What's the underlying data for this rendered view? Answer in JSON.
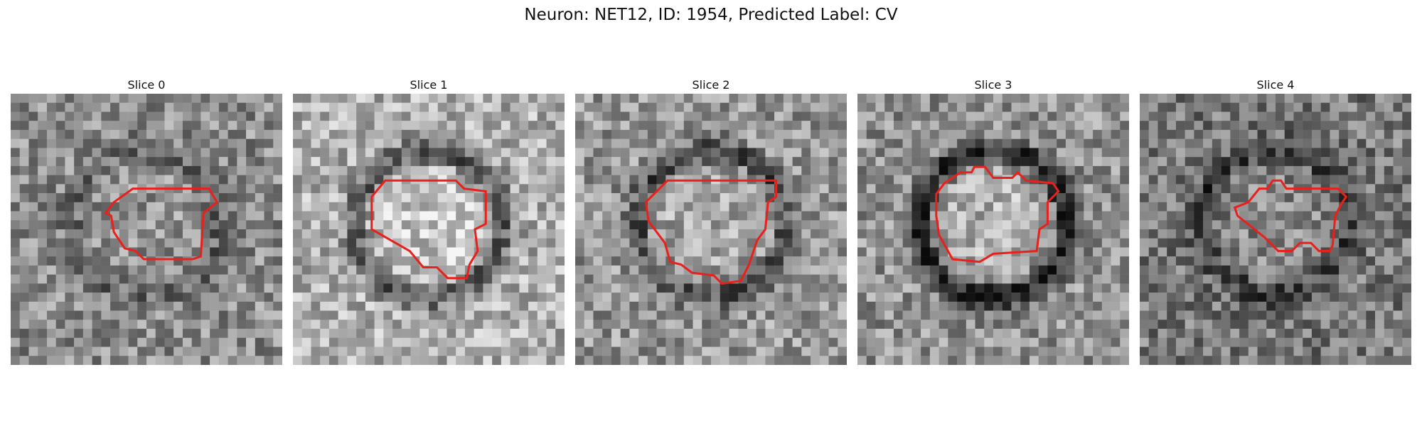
{
  "figure": {
    "title": "Neuron: NET12, ID: 1954, Predicted Label: CV"
  },
  "panels": [
    {
      "title": "Slice 0",
      "seed": 11,
      "base": 140,
      "ring_strength": 35,
      "outline_color": "#e8211c",
      "outline": [
        [
          0.45,
          0.35
        ],
        [
          0.73,
          0.35
        ],
        [
          0.76,
          0.4
        ],
        [
          0.71,
          0.44
        ],
        [
          0.7,
          0.6
        ],
        [
          0.67,
          0.61
        ],
        [
          0.49,
          0.61
        ],
        [
          0.46,
          0.58
        ],
        [
          0.42,
          0.57
        ],
        [
          0.38,
          0.51
        ],
        [
          0.37,
          0.45
        ],
        [
          0.35,
          0.44
        ],
        [
          0.38,
          0.4
        ]
      ]
    },
    {
      "title": "Slice 1",
      "seed": 23,
      "base": 175,
      "ring_strength": 85,
      "outline_color": "#e8211c",
      "outline": [
        [
          0.34,
          0.32
        ],
        [
          0.6,
          0.32
        ],
        [
          0.63,
          0.35
        ],
        [
          0.71,
          0.36
        ],
        [
          0.71,
          0.48
        ],
        [
          0.67,
          0.5
        ],
        [
          0.68,
          0.58
        ],
        [
          0.65,
          0.63
        ],
        [
          0.64,
          0.68
        ],
        [
          0.57,
          0.68
        ],
        [
          0.53,
          0.64
        ],
        [
          0.48,
          0.64
        ],
        [
          0.43,
          0.58
        ],
        [
          0.29,
          0.5
        ],
        [
          0.29,
          0.38
        ]
      ]
    },
    {
      "title": "Slice 2",
      "seed": 37,
      "base": 150,
      "ring_strength": 70,
      "outline_color": "#e8211c",
      "outline": [
        [
          0.34,
          0.32
        ],
        [
          0.74,
          0.32
        ],
        [
          0.74,
          0.38
        ],
        [
          0.71,
          0.4
        ],
        [
          0.7,
          0.5
        ],
        [
          0.67,
          0.54
        ],
        [
          0.64,
          0.63
        ],
        [
          0.61,
          0.69
        ],
        [
          0.54,
          0.7
        ],
        [
          0.51,
          0.67
        ],
        [
          0.43,
          0.66
        ],
        [
          0.39,
          0.63
        ],
        [
          0.35,
          0.62
        ],
        [
          0.33,
          0.55
        ],
        [
          0.27,
          0.47
        ],
        [
          0.26,
          0.4
        ]
      ]
    },
    {
      "title": "Slice 3",
      "seed": 49,
      "base": 145,
      "ring_strength": 110,
      "outline_color": "#e8211c",
      "outline": [
        [
          0.32,
          0.33
        ],
        [
          0.38,
          0.29
        ],
        [
          0.42,
          0.29
        ],
        [
          0.43,
          0.27
        ],
        [
          0.47,
          0.27
        ],
        [
          0.5,
          0.31
        ],
        [
          0.57,
          0.31
        ],
        [
          0.59,
          0.29
        ],
        [
          0.62,
          0.32
        ],
        [
          0.72,
          0.33
        ],
        [
          0.74,
          0.36
        ],
        [
          0.7,
          0.4
        ],
        [
          0.7,
          0.48
        ],
        [
          0.67,
          0.5
        ],
        [
          0.66,
          0.58
        ],
        [
          0.5,
          0.59
        ],
        [
          0.45,
          0.62
        ],
        [
          0.35,
          0.61
        ],
        [
          0.3,
          0.52
        ],
        [
          0.29,
          0.45
        ],
        [
          0.29,
          0.37
        ]
      ]
    },
    {
      "title": "Slice 4",
      "seed": 61,
      "base": 120,
      "ring_strength": 60,
      "outline_color": "#e8211c",
      "outline": [
        [
          0.4,
          0.4
        ],
        [
          0.44,
          0.35
        ],
        [
          0.47,
          0.35
        ],
        [
          0.49,
          0.32
        ],
        [
          0.52,
          0.32
        ],
        [
          0.54,
          0.35
        ],
        [
          0.73,
          0.35
        ],
        [
          0.76,
          0.38
        ],
        [
          0.74,
          0.41
        ],
        [
          0.72,
          0.45
        ],
        [
          0.71,
          0.56
        ],
        [
          0.7,
          0.58
        ],
        [
          0.66,
          0.58
        ],
        [
          0.63,
          0.55
        ],
        [
          0.59,
          0.55
        ],
        [
          0.56,
          0.58
        ],
        [
          0.51,
          0.58
        ],
        [
          0.46,
          0.53
        ],
        [
          0.36,
          0.45
        ],
        [
          0.35,
          0.42
        ]
      ]
    }
  ]
}
